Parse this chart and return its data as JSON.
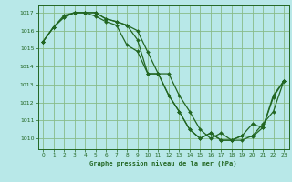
{
  "title": "Graphe pression niveau de la mer (hPa)",
  "background_color": "#b8e8e8",
  "grid_color": "#88bb88",
  "line_color": "#226622",
  "marker_color": "#226622",
  "ylim": [
    1009.4,
    1017.4
  ],
  "xlim": [
    -0.5,
    23.5
  ],
  "yticks": [
    1010,
    1011,
    1012,
    1013,
    1014,
    1015,
    1016,
    1017
  ],
  "xticks": [
    0,
    1,
    2,
    3,
    4,
    5,
    6,
    7,
    8,
    9,
    10,
    11,
    12,
    13,
    14,
    15,
    16,
    17,
    18,
    19,
    20,
    21,
    22,
    23
  ],
  "series": [
    [
      1015.4,
      1016.2,
      1016.75,
      1017.0,
      1017.0,
      1017.0,
      1016.65,
      1016.5,
      1016.3,
      1016.0,
      1014.8,
      1013.6,
      1013.6,
      1012.4,
      1011.5,
      1010.5,
      1010.0,
      1010.3,
      1009.9,
      1009.9,
      1010.15,
      1010.8,
      1011.5,
      1013.2
    ],
    [
      1015.4,
      1016.2,
      1016.75,
      1017.0,
      1017.0,
      1017.0,
      1016.65,
      1016.5,
      1016.3,
      1015.5,
      1013.6,
      1013.6,
      1012.4,
      1011.5,
      1010.5,
      1010.0,
      1010.3,
      1009.9,
      1009.9,
      1010.15,
      1010.8,
      1010.6,
      1012.3,
      1013.2
    ],
    [
      1015.4,
      1016.2,
      1016.85,
      1017.0,
      1017.0,
      1016.8,
      1016.5,
      1016.3,
      1015.2,
      1014.85,
      1013.6,
      1013.6,
      1012.4,
      1011.5,
      1010.5,
      1010.0,
      1010.3,
      1009.9,
      1009.9,
      1010.15,
      1010.1,
      1010.6,
      1012.4,
      1013.2
    ]
  ]
}
